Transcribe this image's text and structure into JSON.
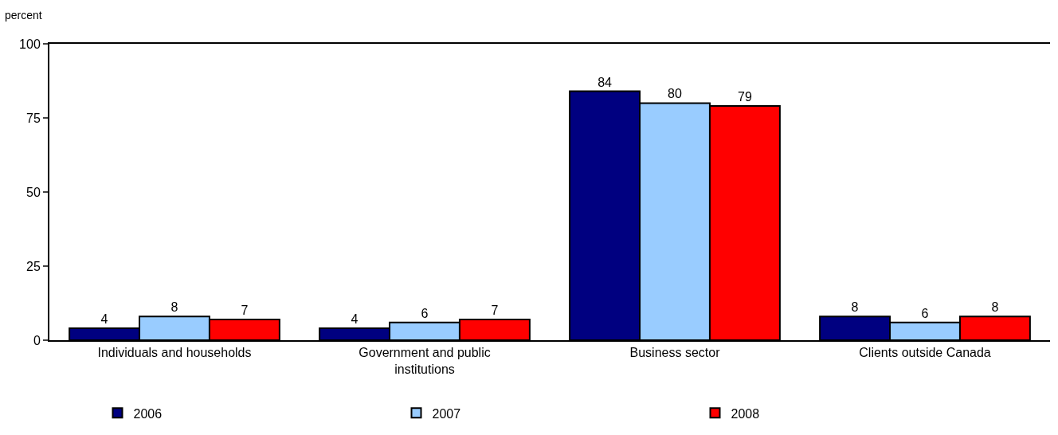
{
  "chart_data": {
    "type": "bar",
    "ylabel": "percent",
    "categories": [
      "Individuals and households",
      "Government and public institutions",
      "Business sector",
      "Clients outside Canada"
    ],
    "series": [
      {
        "name": "2006",
        "color": "#000080",
        "values": [
          4,
          4,
          84,
          8
        ]
      },
      {
        "name": "2007",
        "color": "#99ccff",
        "values": [
          8,
          6,
          80,
          6
        ]
      },
      {
        "name": "2008",
        "color": "#ff0000",
        "values": [
          7,
          7,
          79,
          8
        ]
      }
    ],
    "ylim": [
      0,
      100
    ],
    "yticks": [
      0,
      25,
      50,
      75,
      100
    ],
    "legend": "bottom",
    "data_labels": true
  }
}
